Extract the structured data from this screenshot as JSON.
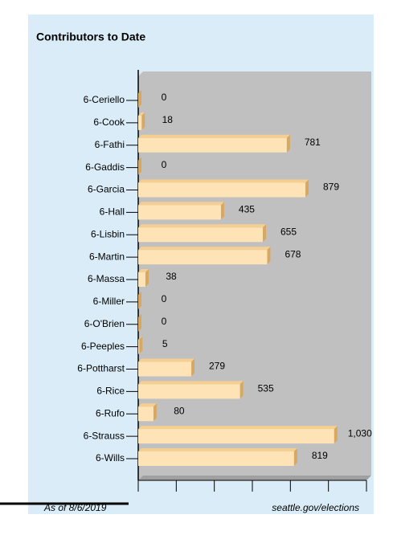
{
  "chart_data": {
    "type": "bar",
    "orientation": "horizontal",
    "title": "Contributors to Date",
    "categories": [
      "6-Ceriello",
      "6-Cook",
      "6-Fathi",
      "6-Gaddis",
      "6-Garcia",
      "6-Hall",
      "6-Lisbin",
      "6-Martin",
      "6-Massa",
      "6-Miller",
      "6-O'Brien",
      "6-Peeples",
      "6-Pottharst",
      "6-Rice",
      "6-Rufo",
      "6-Strauss",
      "6-Wills"
    ],
    "values": [
      0,
      18,
      781,
      0,
      879,
      435,
      655,
      678,
      38,
      0,
      0,
      5,
      279,
      535,
      80,
      1030,
      819
    ],
    "value_labels": [
      "0",
      "18",
      "781",
      "0",
      "879",
      "435",
      "655",
      "678",
      "38",
      "0",
      "0",
      "5",
      "279",
      "535",
      "80",
      "1,030",
      "819"
    ],
    "color": "#fde3b6",
    "xlim": [
      0,
      1200
    ],
    "xticks": [
      0,
      200,
      400,
      600,
      800,
      1000,
      1200
    ],
    "footer_left": "As of 8/6/2019",
    "footer_right": "seattle.gov/elections"
  }
}
